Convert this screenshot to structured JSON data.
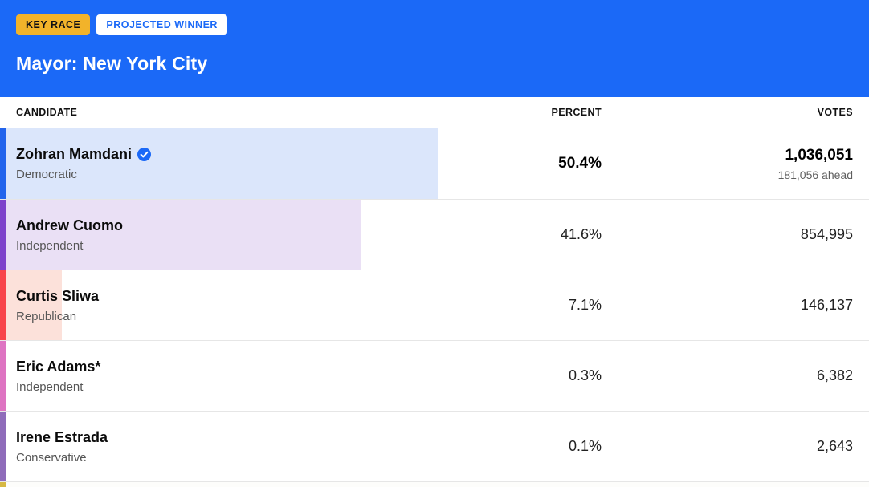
{
  "header": {
    "badges": {
      "key_race": "KEY RACE",
      "projected_winner": "PROJECTED WINNER"
    },
    "title": "Mayor: New York City",
    "colors": {
      "hero_background": "#1b69f7",
      "key_race_badge": "#f2b32a",
      "projected_winner_text": "#1b69f7"
    }
  },
  "table": {
    "columns": [
      "CANDIDATE",
      "PERCENT",
      "VOTES"
    ],
    "rows": [
      {
        "name": "Zohran Mamdani",
        "party": "Democratic",
        "percent_label": "50.4%",
        "percent_value": 50.4,
        "votes": "1,036,051",
        "ahead_note": "181,056 ahead",
        "winner": true,
        "bar_color": "#2264ec",
        "fill_color": "#dbe6fb"
      },
      {
        "name": "Andrew Cuomo",
        "party": "Independent",
        "percent_label": "41.6%",
        "percent_value": 41.6,
        "votes": "854,995",
        "ahead_note": "",
        "winner": false,
        "bar_color": "#7e43cb",
        "fill_color": "#eae0f5"
      },
      {
        "name": "Curtis Sliwa",
        "party": "Republican",
        "percent_label": "7.1%",
        "percent_value": 7.1,
        "votes": "146,137",
        "ahead_note": "",
        "winner": false,
        "bar_color": "#f8444a",
        "fill_color": "#fce1da"
      },
      {
        "name": "Eric Adams*",
        "party": "Independent",
        "percent_label": "0.3%",
        "percent_value": 0.3,
        "votes": "6,382",
        "ahead_note": "",
        "winner": false,
        "bar_color": "#de74c2",
        "fill_color": "#f7ddf0"
      },
      {
        "name": "Irene Estrada",
        "party": "Conservative",
        "percent_label": "0.1%",
        "percent_value": 0.1,
        "votes": "2,643",
        "ahead_note": "",
        "winner": false,
        "bar_color": "#8f6cba",
        "fill_color": "#e9e1f2"
      }
    ],
    "partial_next_row": {
      "bar_color": "#d6b844"
    }
  },
  "icons": {
    "winner_check": "checkmark-seal",
    "winner_check_color": "#1b69f7"
  },
  "chart_data": {
    "type": "table",
    "title": "Mayor: New York City",
    "badges": [
      "KEY RACE",
      "PROJECTED WINNER"
    ],
    "columns": [
      "CANDIDATE",
      "PERCENT",
      "VOTES"
    ],
    "candidates": [
      "Zohran Mamdani",
      "Andrew Cuomo",
      "Curtis Sliwa",
      "Eric Adams*",
      "Irene Estrada"
    ],
    "parties": [
      "Democratic",
      "Independent",
      "Republican",
      "Independent",
      "Conservative"
    ],
    "percent": [
      50.4,
      41.6,
      7.1,
      0.3,
      0.1
    ],
    "votes": [
      1036051,
      854995,
      146137,
      6382,
      2643
    ],
    "projected_winner": "Zohran Mamdani",
    "winner_margin_note": "181,056 ahead",
    "bar_scale": "row background fill width equals percent of full row width"
  }
}
